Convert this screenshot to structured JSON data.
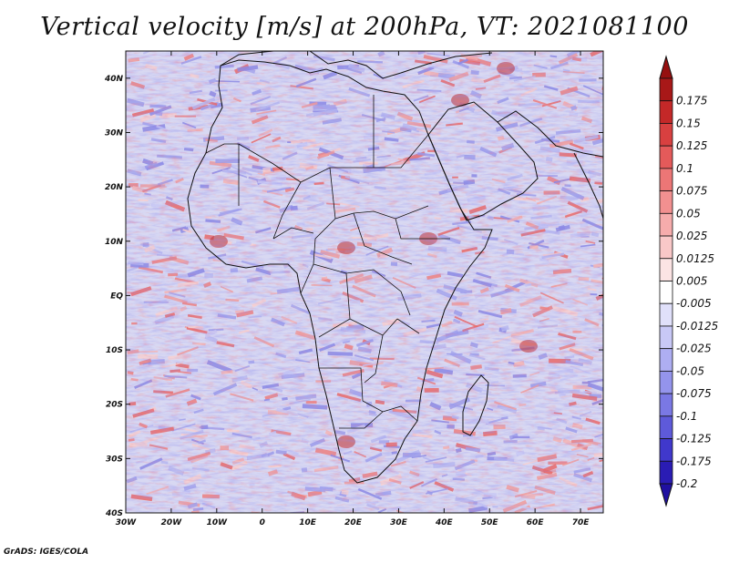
{
  "title": "Vertical velocity [m/s] at 200hPa, VT: 2021081100",
  "credit": "GrADS: IGES/COLA",
  "map": {
    "lon_range": [
      -30,
      75
    ],
    "lat_range": [
      -40,
      45
    ],
    "lon_ticks": [
      {
        "value": -30,
        "label": "30W"
      },
      {
        "value": -20,
        "label": "20W"
      },
      {
        "value": -10,
        "label": "10W"
      },
      {
        "value": 0,
        "label": "0"
      },
      {
        "value": 10,
        "label": "10E"
      },
      {
        "value": 20,
        "label": "20E"
      },
      {
        "value": 30,
        "label": "30E"
      },
      {
        "value": 40,
        "label": "40E"
      },
      {
        "value": 50,
        "label": "50E"
      },
      {
        "value": 60,
        "label": "60E"
      },
      {
        "value": 70,
        "label": "70E"
      }
    ],
    "lat_ticks": [
      {
        "value": 40,
        "label": "40N"
      },
      {
        "value": 30,
        "label": "30N"
      },
      {
        "value": 20,
        "label": "20N"
      },
      {
        "value": 10,
        "label": "10N"
      },
      {
        "value": 0,
        "label": "EQ"
      },
      {
        "value": -10,
        "label": "10S"
      },
      {
        "value": -20,
        "label": "20S"
      },
      {
        "value": -30,
        "label": "30S"
      },
      {
        "value": -40,
        "label": "40S"
      }
    ],
    "color_range_min": "#3a30c0",
    "color_range_mid": "#f2f2fa",
    "color_range_max": "#c02020"
  },
  "colorbar": {
    "levels": [
      {
        "label": "0.175",
        "color": "#a81818"
      },
      {
        "label": "0.15",
        "color": "#c42828"
      },
      {
        "label": "0.125",
        "color": "#d84040"
      },
      {
        "label": "0.1",
        "color": "#e45a5a"
      },
      {
        "label": "0.075",
        "color": "#ec7676"
      },
      {
        "label": "0.05",
        "color": "#f29090"
      },
      {
        "label": "0.025",
        "color": "#f6acac"
      },
      {
        "label": "0.0125",
        "color": "#f9c8c8"
      },
      {
        "label": "0.005",
        "color": "#fce4e4"
      },
      {
        "label": "-0.005",
        "color": "#ffffff"
      },
      {
        "label": "-0.0125",
        "color": "#e0e0fa"
      },
      {
        "label": "-0.025",
        "color": "#c8c8f6"
      },
      {
        "label": "-0.05",
        "color": "#aeaef2"
      },
      {
        "label": "-0.075",
        "color": "#9494ec"
      },
      {
        "label": "-0.1",
        "color": "#7a78e4"
      },
      {
        "label": "-0.125",
        "color": "#5e5ada"
      },
      {
        "label": "-0.175",
        "color": "#4038cc"
      },
      {
        "label": "-0.2",
        "color": "#2a1cb4"
      }
    ],
    "bottom_tip_color": "#2010a0",
    "top_tip_color": "#961010"
  }
}
